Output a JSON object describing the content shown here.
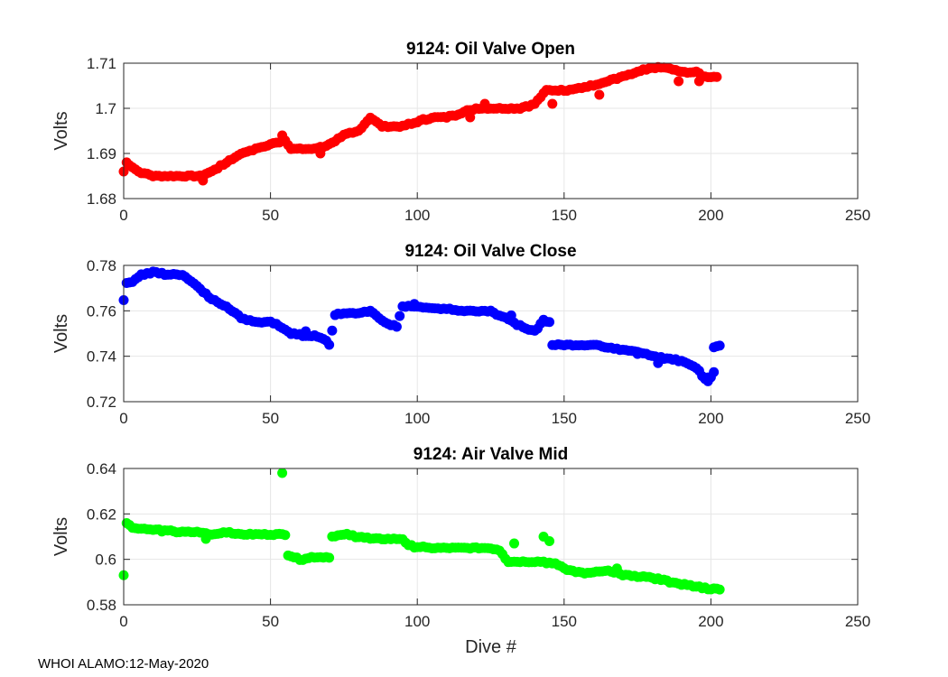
{
  "footer_text": "WHOI ALAMO:12-May-2020",
  "chart_data": [
    {
      "type": "scatter",
      "title": "9124: Oil Valve Open",
      "xlabel": "",
      "ylabel": "Volts",
      "xlim": [
        0,
        250
      ],
      "ylim": [
        1.68,
        1.71
      ],
      "xticks": [
        0,
        50,
        100,
        150,
        200,
        250
      ],
      "xtick_labels": [
        "0",
        "50",
        "100",
        "150",
        "200",
        "250"
      ],
      "yticks": [
        1.68,
        1.69,
        1.7,
        1.71
      ],
      "ytick_labels": [
        "1.68",
        "1.69",
        "1.7",
        "1.71"
      ],
      "grid": true,
      "color": "#ff0000",
      "series": [
        {
          "name": "Oil Valve Open",
          "anchors": [
            [
              0,
              1.686
            ],
            [
              1,
              1.688
            ],
            [
              5,
              1.686
            ],
            [
              10,
              1.685
            ],
            [
              20,
              1.685
            ],
            [
              26,
              1.685
            ],
            [
              30,
              1.686
            ],
            [
              35,
              1.688
            ],
            [
              40,
              1.69
            ],
            [
              45,
              1.691
            ],
            [
              50,
              1.692
            ],
            [
              55,
              1.693
            ],
            [
              57,
              1.691
            ],
            [
              65,
              1.691
            ],
            [
              70,
              1.692
            ],
            [
              75,
              1.694
            ],
            [
              80,
              1.695
            ],
            [
              84,
              1.698
            ],
            [
              88,
              1.696
            ],
            [
              95,
              1.696
            ],
            [
              100,
              1.697
            ],
            [
              105,
              1.698
            ],
            [
              110,
              1.698
            ],
            [
              120,
              1.7
            ],
            [
              125,
              1.7
            ],
            [
              135,
              1.7
            ],
            [
              140,
              1.701
            ],
            [
              144,
              1.704
            ],
            [
              150,
              1.704
            ],
            [
              160,
              1.705
            ],
            [
              170,
              1.707
            ],
            [
              180,
              1.709
            ],
            [
              185,
              1.709
            ],
            [
              190,
              1.708
            ],
            [
              195,
              1.708
            ],
            [
              198,
              1.707
            ],
            [
              202,
              1.707
            ]
          ],
          "outliers": [
            [
              27,
              1.684
            ],
            [
              54,
              1.694
            ],
            [
              67,
              1.69
            ],
            [
              118,
              1.698
            ],
            [
              123,
              1.701
            ],
            [
              146,
              1.701
            ],
            [
              162,
              1.703
            ],
            [
              189,
              1.706
            ],
            [
              196,
              1.706
            ]
          ]
        }
      ]
    },
    {
      "type": "scatter",
      "title": "9124: Oil Valve Close",
      "xlabel": "",
      "ylabel": "Volts",
      "xlim": [
        0,
        250
      ],
      "ylim": [
        0.72,
        0.78
      ],
      "xticks": [
        0,
        50,
        100,
        150,
        200,
        250
      ],
      "xtick_labels": [
        "0",
        "50",
        "100",
        "150",
        "200",
        "250"
      ],
      "yticks": [
        0.72,
        0.74,
        0.76,
        0.78
      ],
      "ytick_labels": [
        "0.72",
        "0.74",
        "0.76",
        "0.78"
      ],
      "grid": true,
      "color": "#0000ff",
      "series": [
        {
          "name": "Oil Valve Close",
          "anchors": [
            [
              0,
              0.765
            ],
            [
              1,
              0.772
            ],
            [
              3,
              0.773
            ],
            [
              6,
              0.776
            ],
            [
              10,
              0.777
            ],
            [
              15,
              0.776
            ],
            [
              20,
              0.776
            ],
            [
              23,
              0.773
            ],
            [
              26,
              0.77
            ],
            [
              30,
              0.765
            ],
            [
              35,
              0.762
            ],
            [
              40,
              0.757
            ],
            [
              45,
              0.755
            ],
            [
              50,
              0.755
            ],
            [
              55,
              0.752
            ],
            [
              57,
              0.75
            ],
            [
              62,
              0.749
            ],
            [
              65,
              0.749
            ],
            [
              69,
              0.747
            ],
            [
              70,
              0.745
            ],
            [
              72,
              0.758
            ],
            [
              75,
              0.759
            ],
            [
              80,
              0.759
            ],
            [
              84,
              0.76
            ],
            [
              87,
              0.757
            ],
            [
              90,
              0.754
            ],
            [
              93,
              0.753
            ],
            [
              95,
              0.762
            ],
            [
              100,
              0.762
            ],
            [
              105,
              0.761
            ],
            [
              110,
              0.761
            ],
            [
              115,
              0.76
            ],
            [
              120,
              0.76
            ],
            [
              125,
              0.76
            ],
            [
              128,
              0.758
            ],
            [
              133,
              0.755
            ],
            [
              137,
              0.752
            ],
            [
              140,
              0.751
            ],
            [
              143,
              0.756
            ],
            [
              145,
              0.755
            ],
            [
              146,
              0.745
            ],
            [
              150,
              0.745
            ],
            [
              155,
              0.745
            ],
            [
              160,
              0.745
            ],
            [
              165,
              0.744
            ],
            [
              170,
              0.743
            ],
            [
              175,
              0.742
            ],
            [
              180,
              0.74
            ],
            [
              185,
              0.739
            ],
            [
              190,
              0.738
            ],
            [
              195,
              0.735
            ],
            [
              198,
              0.73
            ],
            [
              200,
              0.731
            ],
            [
              201,
              0.744
            ],
            [
              203,
              0.745
            ]
          ],
          "outliers": [
            [
              62,
              0.751
            ],
            [
              99,
              0.763
            ],
            [
              132,
              0.758
            ],
            [
              175,
              0.741
            ],
            [
              182,
              0.737
            ],
            [
              199,
              0.729
            ],
            [
              201,
              0.733
            ]
          ]
        }
      ]
    },
    {
      "type": "scatter",
      "title": "9124: Air Valve Mid",
      "xlabel": "Dive #",
      "ylabel": "Volts",
      "xlim": [
        0,
        250
      ],
      "ylim": [
        0.58,
        0.64
      ],
      "xticks": [
        0,
        50,
        100,
        150,
        200,
        250
      ],
      "xtick_labels": [
        "0",
        "50",
        "100",
        "150",
        "200",
        "250"
      ],
      "yticks": [
        0.58,
        0.6,
        0.62,
        0.64
      ],
      "ytick_labels": [
        "0.58",
        "0.6",
        "0.62",
        "0.64"
      ],
      "grid": true,
      "color": "#00ff00",
      "series": [
        {
          "name": "Air Valve Mid",
          "anchors": [
            [
              1,
              0.616
            ],
            [
              3,
              0.614
            ],
            [
              10,
              0.613
            ],
            [
              20,
              0.612
            ],
            [
              25,
              0.612
            ],
            [
              30,
              0.611
            ],
            [
              35,
              0.612
            ],
            [
              40,
              0.611
            ],
            [
              45,
              0.611
            ],
            [
              50,
              0.611
            ],
            [
              55,
              0.611
            ],
            [
              56,
              0.602
            ],
            [
              60,
              0.6
            ],
            [
              65,
              0.601
            ],
            [
              70,
              0.601
            ],
            [
              71,
              0.61
            ],
            [
              75,
              0.611
            ],
            [
              80,
              0.61
            ],
            [
              85,
              0.609
            ],
            [
              90,
              0.609
            ],
            [
              95,
              0.609
            ],
            [
              97,
              0.606
            ],
            [
              105,
              0.605
            ],
            [
              115,
              0.605
            ],
            [
              125,
              0.605
            ],
            [
              128,
              0.604
            ],
            [
              131,
              0.599
            ],
            [
              140,
              0.599
            ],
            [
              143,
              0.599
            ],
            [
              147,
              0.598
            ],
            [
              152,
              0.595
            ],
            [
              158,
              0.594
            ],
            [
              165,
              0.595
            ],
            [
              170,
              0.593
            ],
            [
              180,
              0.592
            ],
            [
              190,
              0.589
            ],
            [
              195,
              0.588
            ],
            [
              200,
              0.587
            ],
            [
              203,
              0.587
            ]
          ],
          "outliers": [
            [
              0,
              0.593
            ],
            [
              28,
              0.609
            ],
            [
              54,
              0.638
            ],
            [
              133,
              0.607
            ],
            [
              143,
              0.61
            ],
            [
              145,
              0.608
            ],
            [
              168,
              0.596
            ]
          ]
        }
      ]
    }
  ]
}
